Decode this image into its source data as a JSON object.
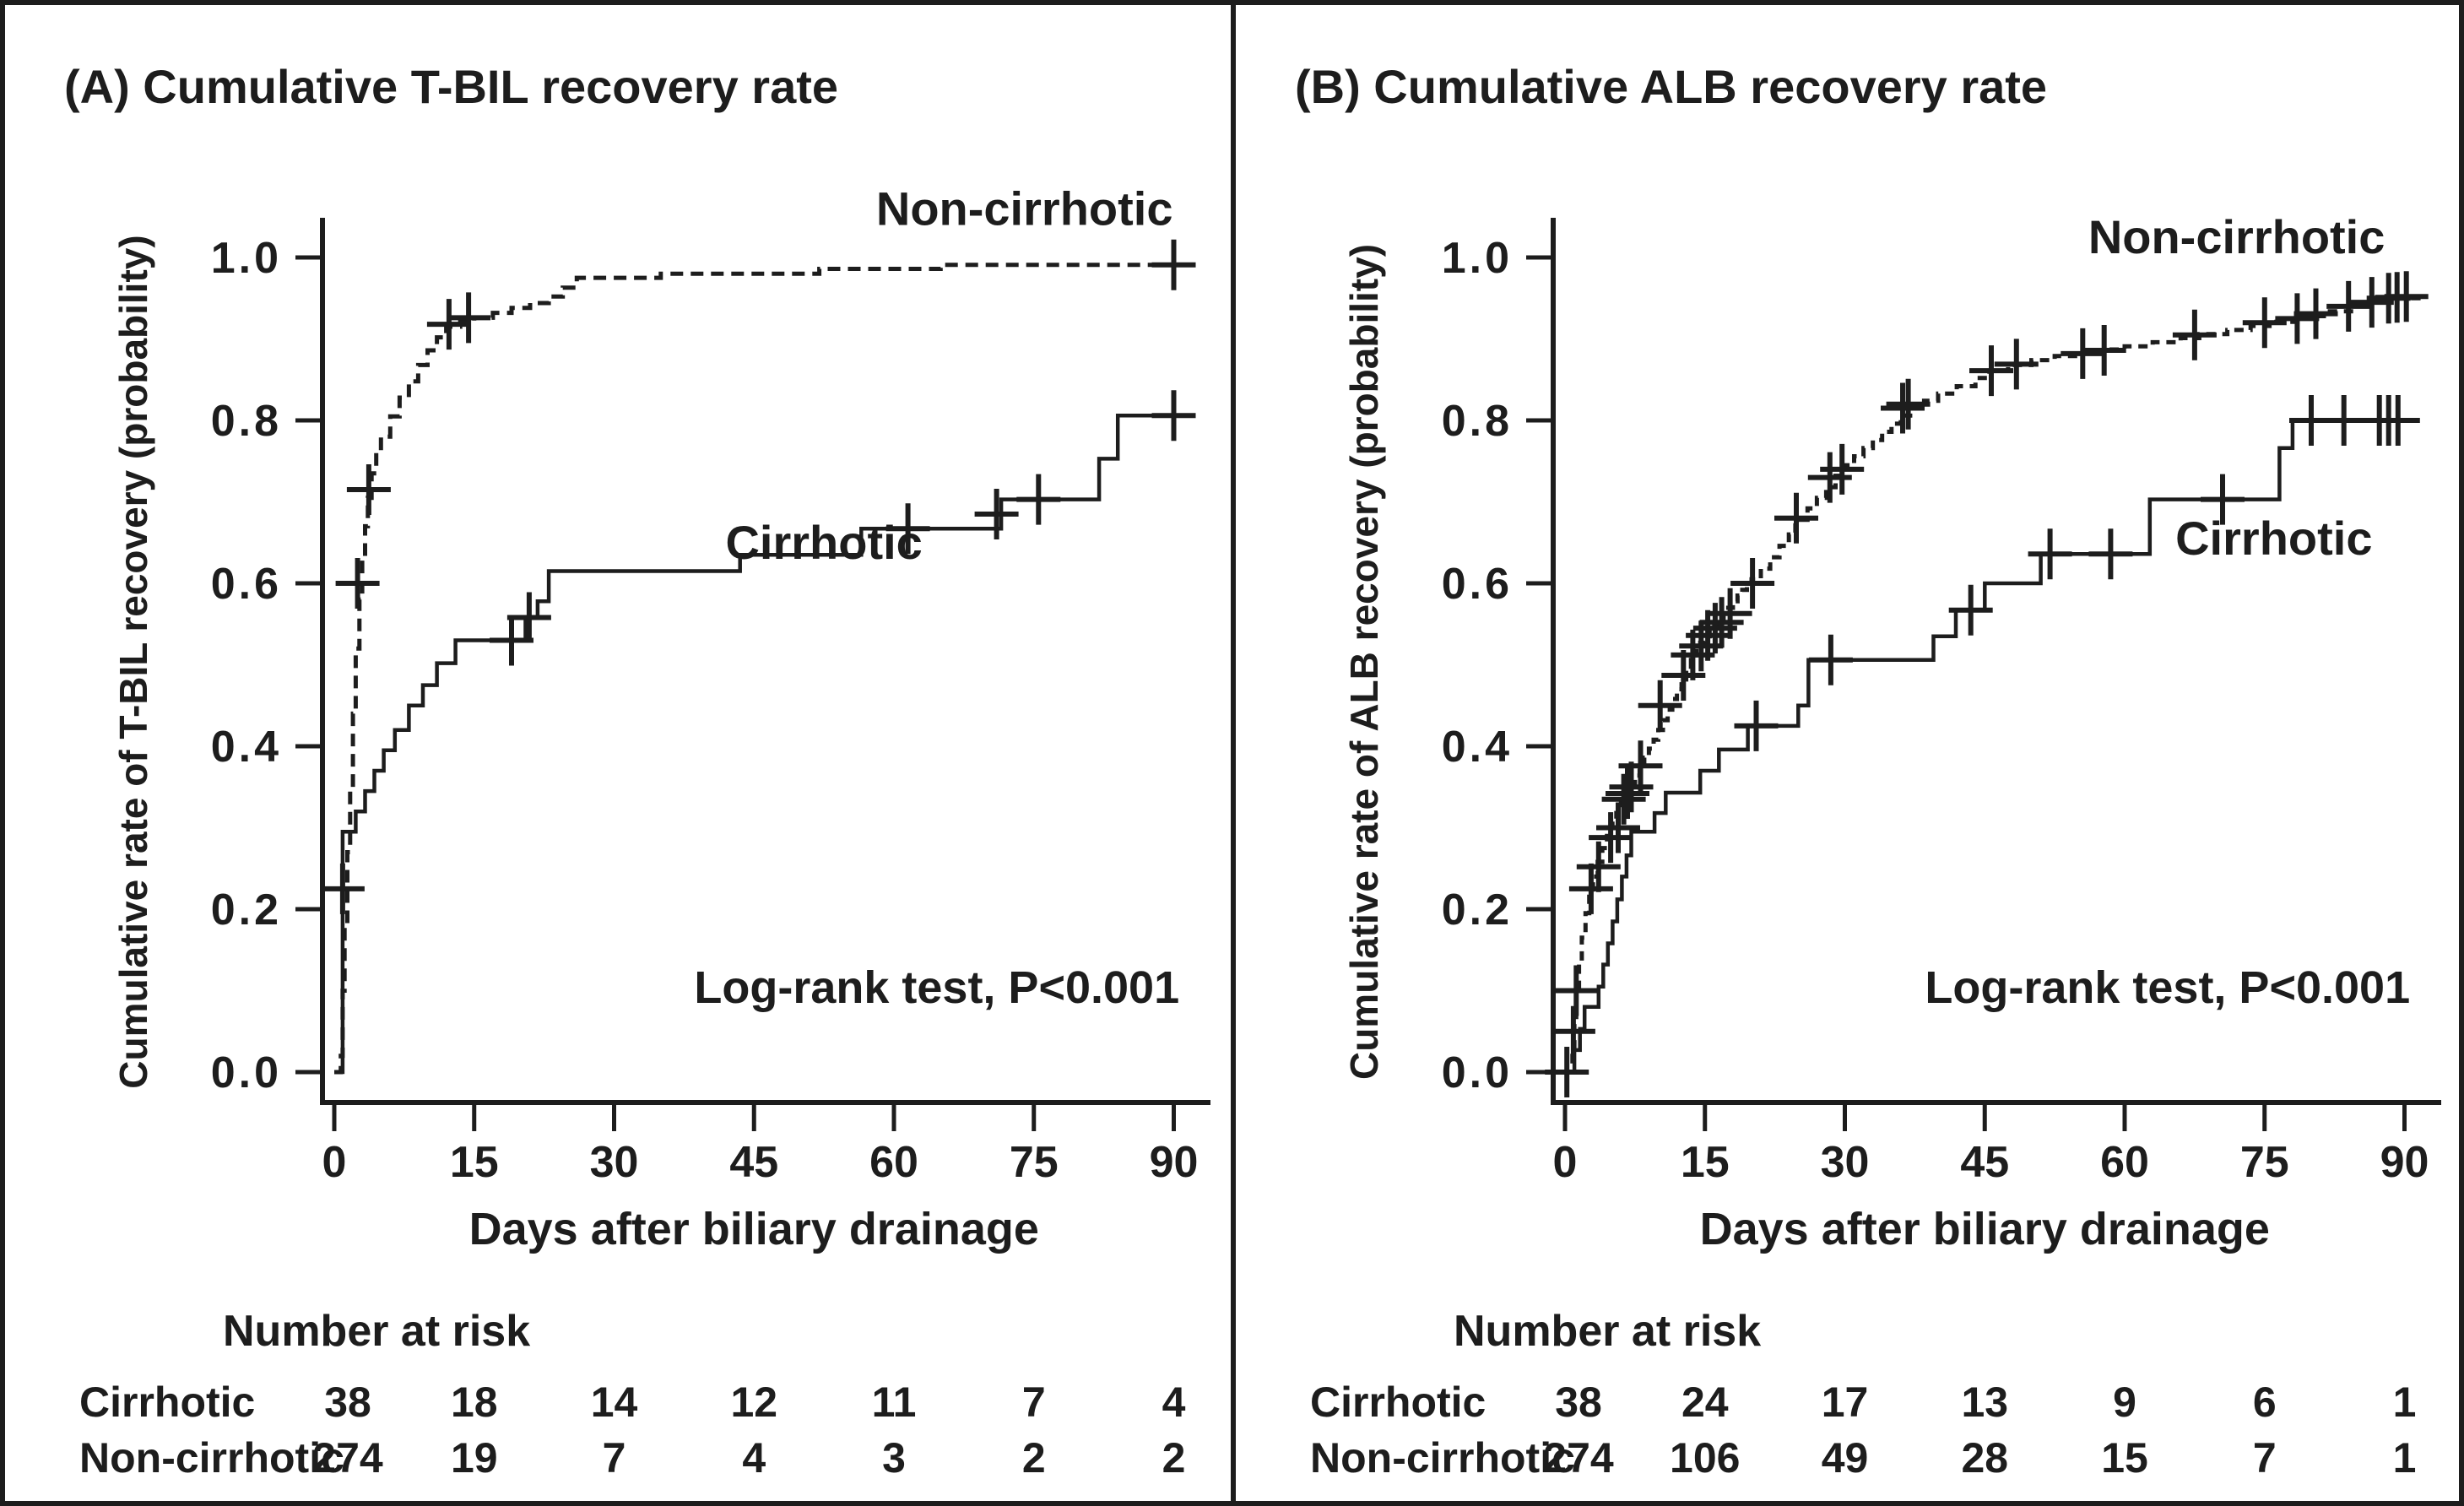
{
  "figure": {
    "background": "#ffffff",
    "ink": "#1d1d1d",
    "divider": "vertical-rule-between-panels"
  },
  "chart_data": [
    {
      "type": "line",
      "subtype": "kaplan-meier-step",
      "panel": "A",
      "title": "(A) Cumulative T-BIL recovery rate",
      "xlabel": "Days after biliary drainage",
      "ylabel": "Cumulative rate of T-BIL recovery (probability)",
      "xticks": [
        0,
        15,
        30,
        45,
        60,
        75,
        90
      ],
      "yticks": [
        0.0,
        0.2,
        0.4,
        0.6,
        0.8,
        1.0
      ],
      "xlim": [
        -1.5,
        94
      ],
      "ylim": [
        0,
        1.05
      ],
      "grid": false,
      "legend_position": "labels-on-plot",
      "annotation": {
        "text": "Log-rank test, P<0.001",
        "at": [
          90.6,
          0.085
        ],
        "align": "end"
      },
      "series": [
        {
          "name": "Non-cirrhotic",
          "style": "dashed",
          "dash": "15 9",
          "label_at": [
            74,
            1.04
          ],
          "steps": [
            [
              0,
              0
            ],
            [
              0.7,
              0.02
            ],
            [
              0.9,
              0.1
            ],
            [
              1.1,
              0.18
            ],
            [
              1.4,
              0.27
            ],
            [
              1.7,
              0.35
            ],
            [
              2.0,
              0.44
            ],
            [
              2.3,
              0.52
            ],
            [
              2.7,
              0.58
            ],
            [
              3.0,
              0.63
            ],
            [
              3.3,
              0.67
            ],
            [
              3.6,
              0.705
            ],
            [
              4.0,
              0.735
            ],
            [
              4.5,
              0.76
            ],
            [
              5.0,
              0.78
            ],
            [
              6.0,
              0.805
            ],
            [
              7.0,
              0.828
            ],
            [
              8.0,
              0.848
            ],
            [
              9.0,
              0.868
            ],
            [
              10.0,
              0.886
            ],
            [
              11.0,
              0.902
            ],
            [
              12.0,
              0.915
            ],
            [
              13.5,
              0.921
            ],
            [
              15,
              0.926
            ],
            [
              17,
              0.932
            ],
            [
              19,
              0.938
            ],
            [
              21,
              0.944
            ],
            [
              23,
              0.952
            ],
            [
              24.5,
              0.963
            ],
            [
              26,
              0.975
            ],
            [
              35,
              0.98
            ],
            [
              52,
              0.986
            ],
            [
              65,
              0.991
            ],
            [
              91.5,
              0.991
            ]
          ],
          "censors": [
            [
              2.5,
              0.6
            ],
            [
              3.7,
              0.715
            ],
            [
              12.3,
              0.918
            ],
            [
              14.4,
              0.926
            ],
            [
              90,
              0.991
            ]
          ]
        },
        {
          "name": "Cirrhotic",
          "style": "solid",
          "label_at": [
            52.5,
            0.63
          ],
          "steps": [
            [
              0,
              0
            ],
            [
              0.9,
              0.295
            ],
            [
              2.3,
              0.32
            ],
            [
              3.3,
              0.345
            ],
            [
              4.3,
              0.37
            ],
            [
              5.3,
              0.395
            ],
            [
              6.5,
              0.42
            ],
            [
              8.0,
              0.45
            ],
            [
              9.5,
              0.475
            ],
            [
              11,
              0.502
            ],
            [
              13,
              0.53
            ],
            [
              20.5,
              0.558
            ],
            [
              21.8,
              0.578
            ],
            [
              23,
              0.615
            ],
            [
              43.5,
              0.635
            ],
            [
              56.5,
              0.667
            ],
            [
              71.5,
              0.703
            ],
            [
              82,
              0.753
            ],
            [
              84,
              0.806
            ],
            [
              91.5,
              0.806
            ]
          ],
          "censors": [
            [
              0.9,
              0.225
            ],
            [
              19,
              0.53
            ],
            [
              20.9,
              0.558
            ],
            [
              61.5,
              0.667
            ],
            [
              71,
              0.685
            ],
            [
              75.5,
              0.703
            ],
            [
              90,
              0.806
            ]
          ]
        }
      ],
      "risk_table": {
        "title": "Number at risk",
        "columns_at_days": [
          0,
          15,
          30,
          45,
          60,
          75,
          90
        ],
        "rows": [
          {
            "label": "Cirrhotic",
            "values": [
              38,
              18,
              14,
              12,
              11,
              7,
              4
            ]
          },
          {
            "label": "Non-cirrhotic",
            "values": [
              274,
              19,
              7,
              4,
              3,
              2,
              2
            ]
          }
        ]
      }
    },
    {
      "type": "line",
      "subtype": "kaplan-meier-step",
      "panel": "B",
      "title": "(B) Cumulative ALB recovery rate",
      "xlabel": "Days after biliary drainage",
      "ylabel": "Cumulative rate of ALB recovery (probability)",
      "xticks": [
        0,
        15,
        30,
        45,
        60,
        75,
        90
      ],
      "yticks": [
        0.0,
        0.2,
        0.4,
        0.6,
        0.8,
        1.0
      ],
      "xlim": [
        -1.5,
        94
      ],
      "ylim": [
        0,
        1.05
      ],
      "grid": false,
      "legend_position": "labels-on-plot",
      "annotation": {
        "text": "Log-rank test, P<0.001",
        "at": [
          90.6,
          0.085
        ],
        "align": "end"
      },
      "series": [
        {
          "name": "Non-cirrhotic",
          "style": "dashed",
          "dash": "11 8",
          "label_at": [
            72,
            1.005
          ],
          "steps": [
            [
              0,
              0
            ],
            [
              0.8,
              0.02
            ],
            [
              1.0,
              0.06
            ],
            [
              1.2,
              0.1
            ],
            [
              1.5,
              0.135
            ],
            [
              1.8,
              0.165
            ],
            [
              2.2,
              0.195
            ],
            [
              2.6,
              0.22
            ],
            [
              3.0,
              0.24
            ],
            [
              3.5,
              0.258
            ],
            [
              4.0,
              0.275
            ],
            [
              4.5,
              0.29
            ],
            [
              5.0,
              0.305
            ],
            [
              5.5,
              0.318
            ],
            [
              6.0,
              0.33
            ],
            [
              6.5,
              0.342
            ],
            [
              7.0,
              0.353
            ],
            [
              7.5,
              0.364
            ],
            [
              8.0,
              0.375
            ],
            [
              8.5,
              0.386
            ],
            [
              9.0,
              0.397
            ],
            [
              9.5,
              0.408
            ],
            [
              10.0,
              0.42
            ],
            [
              10.5,
              0.432
            ],
            [
              11.0,
              0.445
            ],
            [
              11.5,
              0.458
            ],
            [
              12.0,
              0.47
            ],
            [
              12.5,
              0.482
            ],
            [
              13.0,
              0.494
            ],
            [
              13.5,
              0.506
            ],
            [
              14.0,
              0.517
            ],
            [
              14.5,
              0.527
            ],
            [
              15.0,
              0.535
            ],
            [
              15.5,
              0.542
            ],
            [
              16.0,
              0.549
            ],
            [
              16.5,
              0.556
            ],
            [
              17.0,
              0.563
            ],
            [
              17.5,
              0.57
            ],
            [
              18.0,
              0.578
            ],
            [
              18.5,
              0.585
            ],
            [
              19.0,
              0.592
            ],
            [
              19.5,
              0.598
            ],
            [
              20.0,
              0.605
            ],
            [
              21,
              0.618
            ],
            [
              22,
              0.632
            ],
            [
              23,
              0.646
            ],
            [
              24,
              0.66
            ],
            [
              24.7,
              0.678
            ],
            [
              26,
              0.692
            ],
            [
              27,
              0.705
            ],
            [
              28,
              0.718
            ],
            [
              29,
              0.732
            ],
            [
              30,
              0.745
            ],
            [
              31,
              0.756
            ],
            [
              32,
              0.766
            ],
            [
              33,
              0.776
            ],
            [
              34,
              0.786
            ],
            [
              35,
              0.796
            ],
            [
              36,
              0.806
            ],
            [
              37,
              0.815
            ],
            [
              38.5,
              0.824
            ],
            [
              40,
              0.833
            ],
            [
              42,
              0.842
            ],
            [
              44,
              0.852
            ],
            [
              45.5,
              0.861
            ],
            [
              47.5,
              0.868
            ],
            [
              50,
              0.874
            ],
            [
              52.5,
              0.879
            ],
            [
              55,
              0.883
            ],
            [
              58,
              0.887
            ],
            [
              60,
              0.891
            ],
            [
              63,
              0.896
            ],
            [
              66,
              0.901
            ],
            [
              68,
              0.906
            ],
            [
              71,
              0.911
            ],
            [
              73.5,
              0.916
            ],
            [
              76,
              0.921
            ],
            [
              79,
              0.928
            ],
            [
              82,
              0.934
            ],
            [
              84.5,
              0.94
            ],
            [
              86.5,
              0.945
            ],
            [
              88,
              0.95
            ],
            [
              91.5,
              0.952
            ]
          ],
          "censors": [
            [
              0.2,
              0.0
            ],
            [
              0.9,
              0.05
            ],
            [
              1.2,
              0.1
            ],
            [
              2.8,
              0.225
            ],
            [
              3.6,
              0.252
            ],
            [
              4.9,
              0.288
            ],
            [
              5.7,
              0.3
            ],
            [
              6.3,
              0.335
            ],
            [
              6.7,
              0.342
            ],
            [
              7.1,
              0.35
            ],
            [
              8.1,
              0.376
            ],
            [
              10.2,
              0.45
            ],
            [
              12.7,
              0.487
            ],
            [
              13.7,
              0.512
            ],
            [
              14.6,
              0.523
            ],
            [
              15.3,
              0.536
            ],
            [
              16.1,
              0.545
            ],
            [
              16.8,
              0.552
            ],
            [
              17.7,
              0.563
            ],
            [
              20.1,
              0.6
            ],
            [
              24.8,
              0.68
            ],
            [
              28.4,
              0.73
            ],
            [
              29.7,
              0.74
            ],
            [
              36.2,
              0.815
            ],
            [
              36.8,
              0.82
            ],
            [
              45.7,
              0.861
            ],
            [
              48.4,
              0.869
            ],
            [
              55.5,
              0.882
            ],
            [
              57.8,
              0.886
            ],
            [
              67.5,
              0.905
            ],
            [
              75,
              0.92
            ],
            [
              78.5,
              0.925
            ],
            [
              80.5,
              0.931
            ],
            [
              84,
              0.94
            ],
            [
              86.5,
              0.945
            ],
            [
              88.3,
              0.95
            ],
            [
              89.2,
              0.951
            ],
            [
              90.2,
              0.952
            ]
          ]
        },
        {
          "name": "Cirrhotic",
          "style": "solid",
          "label_at": [
            76,
            0.635
          ],
          "steps": [
            [
              0,
              0
            ],
            [
              1.0,
              0.027
            ],
            [
              1.6,
              0.053
            ],
            [
              2.1,
              0.08
            ],
            [
              3.6,
              0.105
            ],
            [
              4.1,
              0.132
            ],
            [
              4.6,
              0.158
            ],
            [
              5.1,
              0.185
            ],
            [
              5.6,
              0.212
            ],
            [
              6.1,
              0.24
            ],
            [
              6.6,
              0.266
            ],
            [
              7.1,
              0.295
            ],
            [
              9.6,
              0.318
            ],
            [
              10.8,
              0.343
            ],
            [
              14.5,
              0.37
            ],
            [
              16.5,
              0.396
            ],
            [
              19.6,
              0.425
            ],
            [
              25,
              0.45
            ],
            [
              26.1,
              0.506
            ],
            [
              39.5,
              0.535
            ],
            [
              41.9,
              0.567
            ],
            [
              45,
              0.6
            ],
            [
              51,
              0.636
            ],
            [
              62.7,
              0.703
            ],
            [
              76.6,
              0.766
            ],
            [
              78,
              0.8
            ],
            [
              91,
              0.8
            ]
          ],
          "censors": [
            [
              20.5,
              0.425
            ],
            [
              28.5,
              0.506
            ],
            [
              43.5,
              0.567
            ],
            [
              52,
              0.636
            ],
            [
              58.5,
              0.636
            ],
            [
              70.5,
              0.703
            ],
            [
              80,
              0.8
            ],
            [
              83.5,
              0.8
            ],
            [
              87.3,
              0.8
            ],
            [
              88.3,
              0.8
            ],
            [
              89.3,
              0.8
            ]
          ]
        }
      ],
      "risk_table": {
        "title": "Number at risk",
        "columns_at_days": [
          0,
          15,
          30,
          45,
          60,
          75,
          90
        ],
        "rows": [
          {
            "label": "Cirrhotic",
            "values": [
              38,
              24,
              17,
              13,
              9,
              6,
              1
            ]
          },
          {
            "label": "Non-cirrhotic",
            "values": [
              274,
              106,
              49,
              28,
              15,
              7,
              1
            ]
          }
        ]
      }
    }
  ]
}
